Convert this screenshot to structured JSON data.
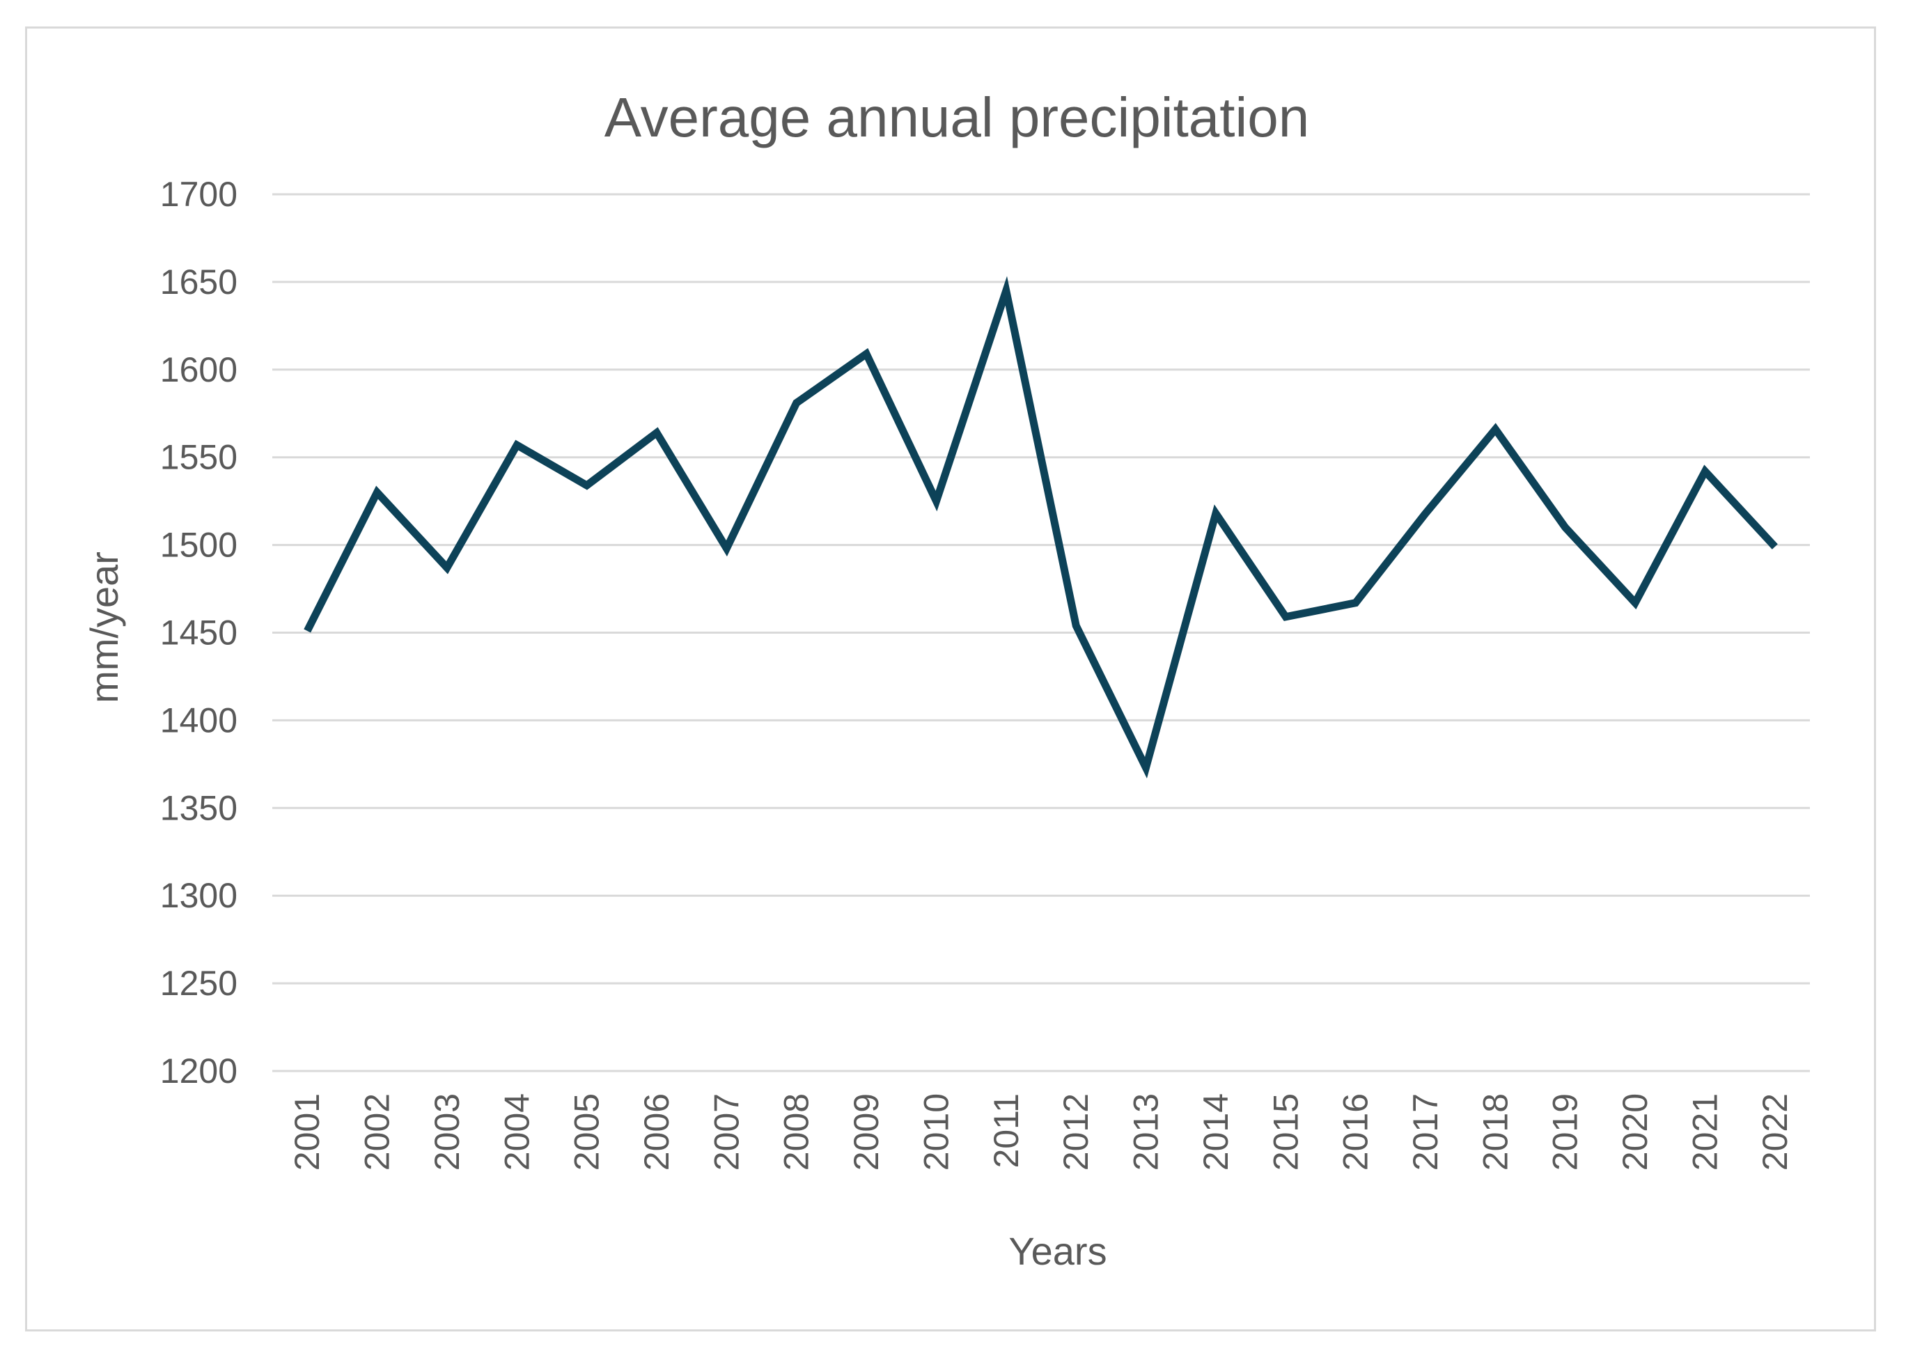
{
  "chart_data": {
    "type": "line",
    "title": "Average annual precipitation",
    "xlabel": "Years",
    "ylabel": "mm/year",
    "ylim": [
      1200,
      1700
    ],
    "ytick_step": 50,
    "grid": true,
    "legend": "none",
    "line_color": "#0d4258",
    "categories": [
      "2001",
      "2002",
      "2003",
      "2004",
      "2005",
      "2006",
      "2007",
      "2008",
      "2009",
      "2010",
      "2011",
      "2012",
      "2013",
      "2014",
      "2015",
      "2016",
      "2017",
      "2018",
      "2019",
      "2020",
      "2021",
      "2022"
    ],
    "series": [
      {
        "values": [
          1451,
          1530,
          1487,
          1557,
          1534,
          1564,
          1498,
          1581,
          1609,
          1525,
          1645,
          1454,
          1373,
          1518,
          1459,
          1467,
          1518,
          1566,
          1510,
          1467,
          1542,
          1499
        ]
      }
    ]
  }
}
